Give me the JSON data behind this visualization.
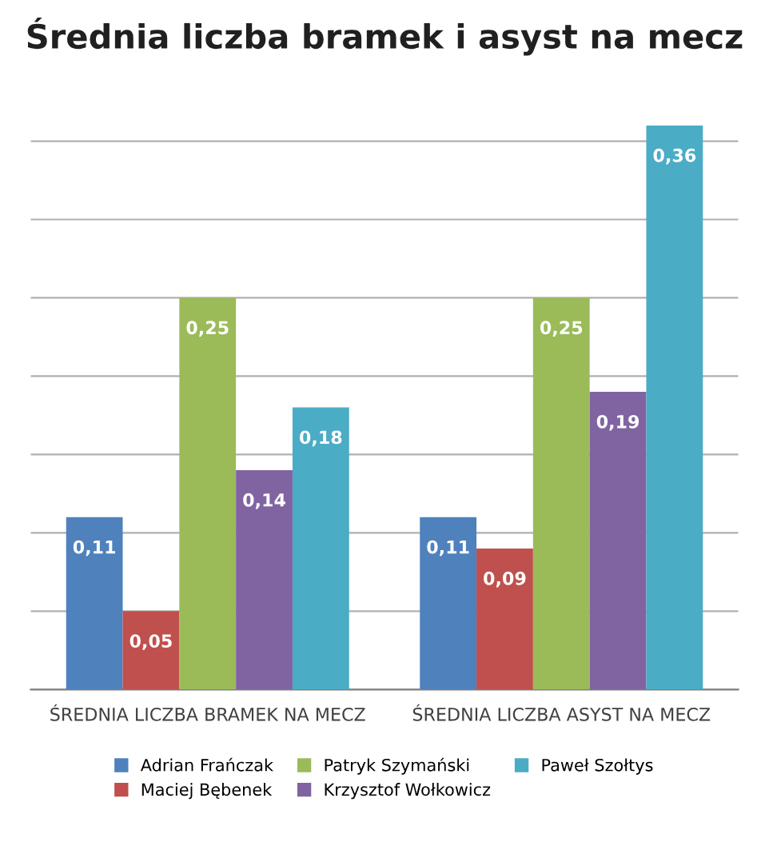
{
  "chart_data": {
    "type": "bar",
    "title": "Średnia liczba bramek i asyst na mecz",
    "categories": [
      "ŚREDNIA LICZBA BRAMEK NA MECZ",
      "ŚREDNIA LICZBA ASYST NA MECZ"
    ],
    "series": [
      {
        "name": "Adrian Frańczak",
        "color": "#4f81bd",
        "values": [
          0.11,
          0.11
        ],
        "value_labels": [
          "0,11",
          "0,11"
        ]
      },
      {
        "name": "Maciej Bębenek",
        "color": "#c0504d",
        "values": [
          0.05,
          0.09
        ],
        "value_labels": [
          "0,05",
          "0,09"
        ]
      },
      {
        "name": "Patryk Szymański",
        "color": "#9bbb59",
        "values": [
          0.25,
          0.25
        ],
        "value_labels": [
          "0,25",
          "0,25"
        ]
      },
      {
        "name": "Krzysztof Wołkowicz",
        "color": "#8064a2",
        "values": [
          0.14,
          0.19
        ],
        "value_labels": [
          "0,14",
          "0,19"
        ]
      },
      {
        "name": "Paweł Szołtys",
        "color": "#4bacc6",
        "values": [
          0.18,
          0.36
        ],
        "value_labels": [
          "0,18",
          "0,36"
        ]
      }
    ],
    "tick_labels": "x",
    "grid": "y",
    "legend": "bottom"
  }
}
